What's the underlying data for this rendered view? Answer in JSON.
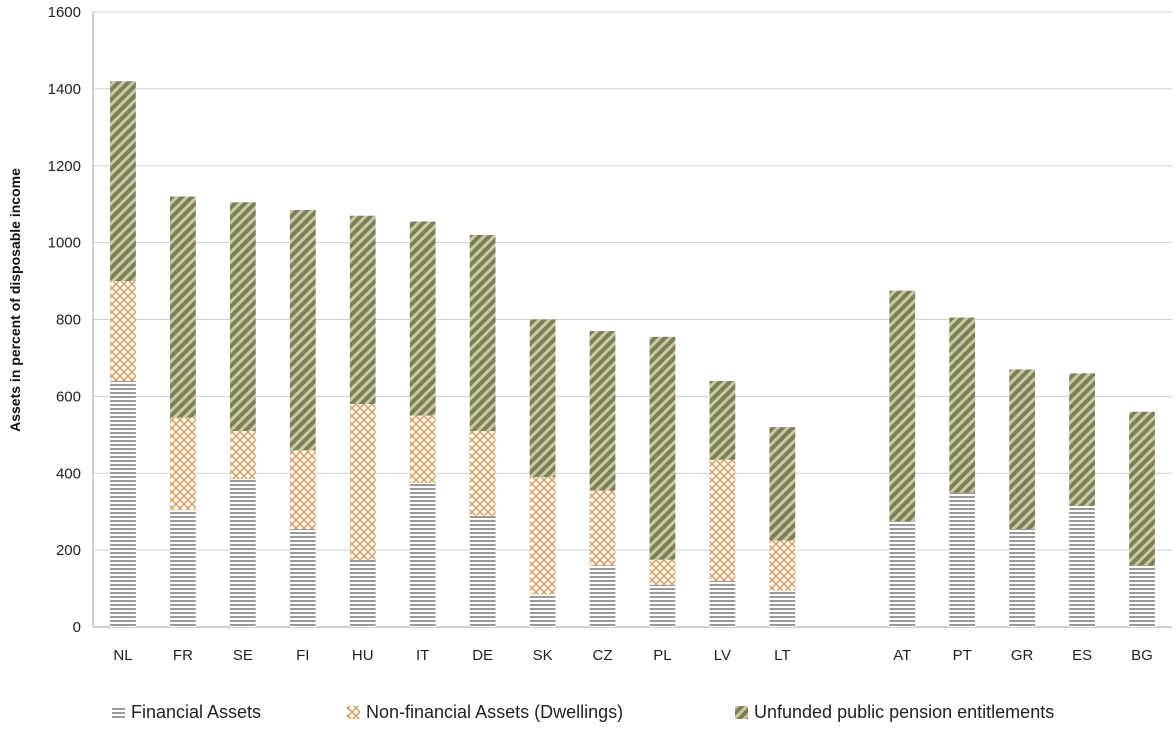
{
  "chart_data": {
    "type": "bar",
    "stacked": true,
    "title": "",
    "xlabel": "",
    "ylabel": "Assets in percent of disposable income",
    "ylim": [
      0,
      1600
    ],
    "yticks": [
      0,
      200,
      400,
      600,
      800,
      1000,
      1200,
      1400,
      1600
    ],
    "grid": "horizontal",
    "legend_position": "bottom",
    "groups": [
      [
        "NL",
        "FR",
        "SE",
        "FI",
        "HU",
        "IT",
        "DE",
        "SK",
        "CZ",
        "PL",
        "LV",
        "LT"
      ],
      [
        "AT",
        "PT",
        "GR",
        "ES",
        "BG"
      ]
    ],
    "categories": [
      "NL",
      "FR",
      "SE",
      "FI",
      "HU",
      "IT",
      "DE",
      "SK",
      "CZ",
      "PL",
      "LV",
      "LT",
      "AT",
      "PT",
      "GR",
      "ES",
      "BG"
    ],
    "series": [
      {
        "name": "Financial Assets",
        "pattern": "horizontal-lines",
        "color": "#9a9a9a",
        "values": [
          640,
          305,
          385,
          255,
          175,
          375,
          290,
          85,
          160,
          110,
          120,
          95,
          275,
          350,
          255,
          315,
          160
        ]
      },
      {
        "name": "Non-financial Assets (Dwellings)",
        "pattern": "crosshatch",
        "color": "#d9a56a",
        "values": [
          260,
          240,
          125,
          205,
          405,
          175,
          220,
          305,
          195,
          65,
          315,
          130,
          0,
          0,
          0,
          0,
          0
        ]
      },
      {
        "name": "Unfunded public pension entitlements",
        "pattern": "diagonal-stripes",
        "color": "#8a8a62",
        "values": [
          520,
          575,
          595,
          625,
          490,
          505,
          510,
          410,
          415,
          580,
          205,
          295,
          600,
          455,
          415,
          345,
          400
        ]
      }
    ]
  }
}
